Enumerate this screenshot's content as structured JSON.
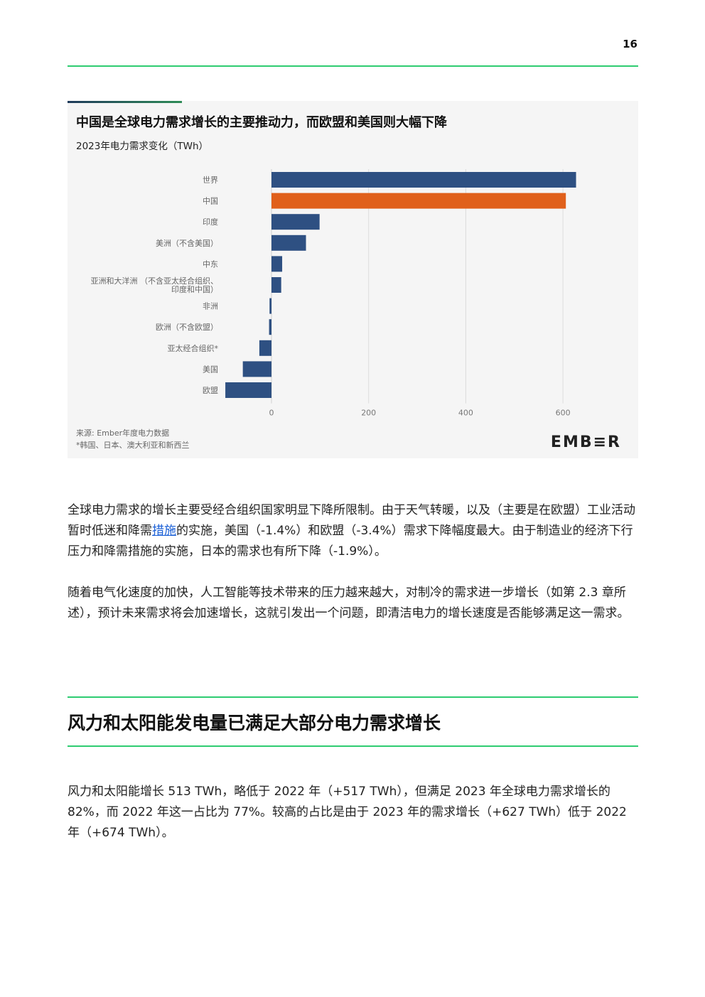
{
  "page_number": "16",
  "chart": {
    "title": "中国是全球电力需求增长的主要推动力，而欧盟和美国则大幅下降",
    "subtitle": "2023年电力需求变化（TWh）",
    "source": "来源: Ember年度电力数据",
    "footnote": "*韩国、日本、澳大利亚和新西兰",
    "logo": "EMB≡R"
  },
  "chart_data": {
    "type": "bar",
    "orientation": "horizontal",
    "title": "中国是全球电力需求增长的主要推动力，而欧盟和美国则大幅下降",
    "subtitle": "2023年电力需求变化（TWh）",
    "categories": [
      "世界",
      "中国",
      "印度",
      "美洲（不含美国）",
      "中东",
      "亚洲和大洋洲 （不含亚太经合组织、印度和中国）",
      "非洲",
      "欧洲（不含欧盟）",
      "亚太经合组织*",
      "美国",
      "欧盟"
    ],
    "category_lines": [
      [
        "世界"
      ],
      [
        "中国"
      ],
      [
        "印度"
      ],
      [
        "美洲（不含美国）"
      ],
      [
        "中东"
      ],
      [
        "亚洲和大洋洲 （不含亚太经合组织、",
        "印度和中国）"
      ],
      [
        "非洲"
      ],
      [
        "欧洲（不含欧盟）"
      ],
      [
        "亚太经合组织*"
      ],
      [
        "美国"
      ],
      [
        "欧盟"
      ]
    ],
    "values": [
      627,
      606,
      99,
      71,
      22,
      20,
      -4,
      -5,
      -25,
      -59,
      -95
    ],
    "colors": [
      "#2e5082",
      "#e0601b",
      "#2e5082",
      "#2e5082",
      "#2e5082",
      "#2e5082",
      "#2e5082",
      "#2e5082",
      "#2e5082",
      "#2e5082",
      "#2e5082"
    ],
    "xticks": [
      0,
      200,
      400,
      600
    ],
    "xlim": [
      -95,
      720
    ],
    "grid": true
  },
  "paragraphs": {
    "p1_a": "全球电力需求的增长主要受经合组织国家明显下降所限制。由于天气转暖，以及（主要是在欧盟）工业活动暂时低迷和降需",
    "p1_link": "措施",
    "p1_b": "的实施，美国（-1.4%）和欧盟（-3.4%）需求下降幅度最大。由于制造业的经济下行压力和降需措施的实施，日本的需求也有所下降（-1.9%）。",
    "p2": "随着电气化速度的加快，人工智能等技术带来的压力越来越大，对制冷的需求进一步增长（如第 2.3 章所述），预计未来需求将会加速增长，这就引发出一个问题，即清洁电力的增长速度是否能够满足这一需求。",
    "section_title": "风力和太阳能发电量已满足大部分电力需求增长",
    "p3": "风力和太阳能增长 513 TWh，略低于 2022 年（+517 TWh），但满足 2023 年全球电力需求增长的 82%，而 2022 年这一占比为 77%。较高的占比是由于 2023 年的需求增长（+627 TWh）低于 2022 年（+674 TWh）。"
  }
}
